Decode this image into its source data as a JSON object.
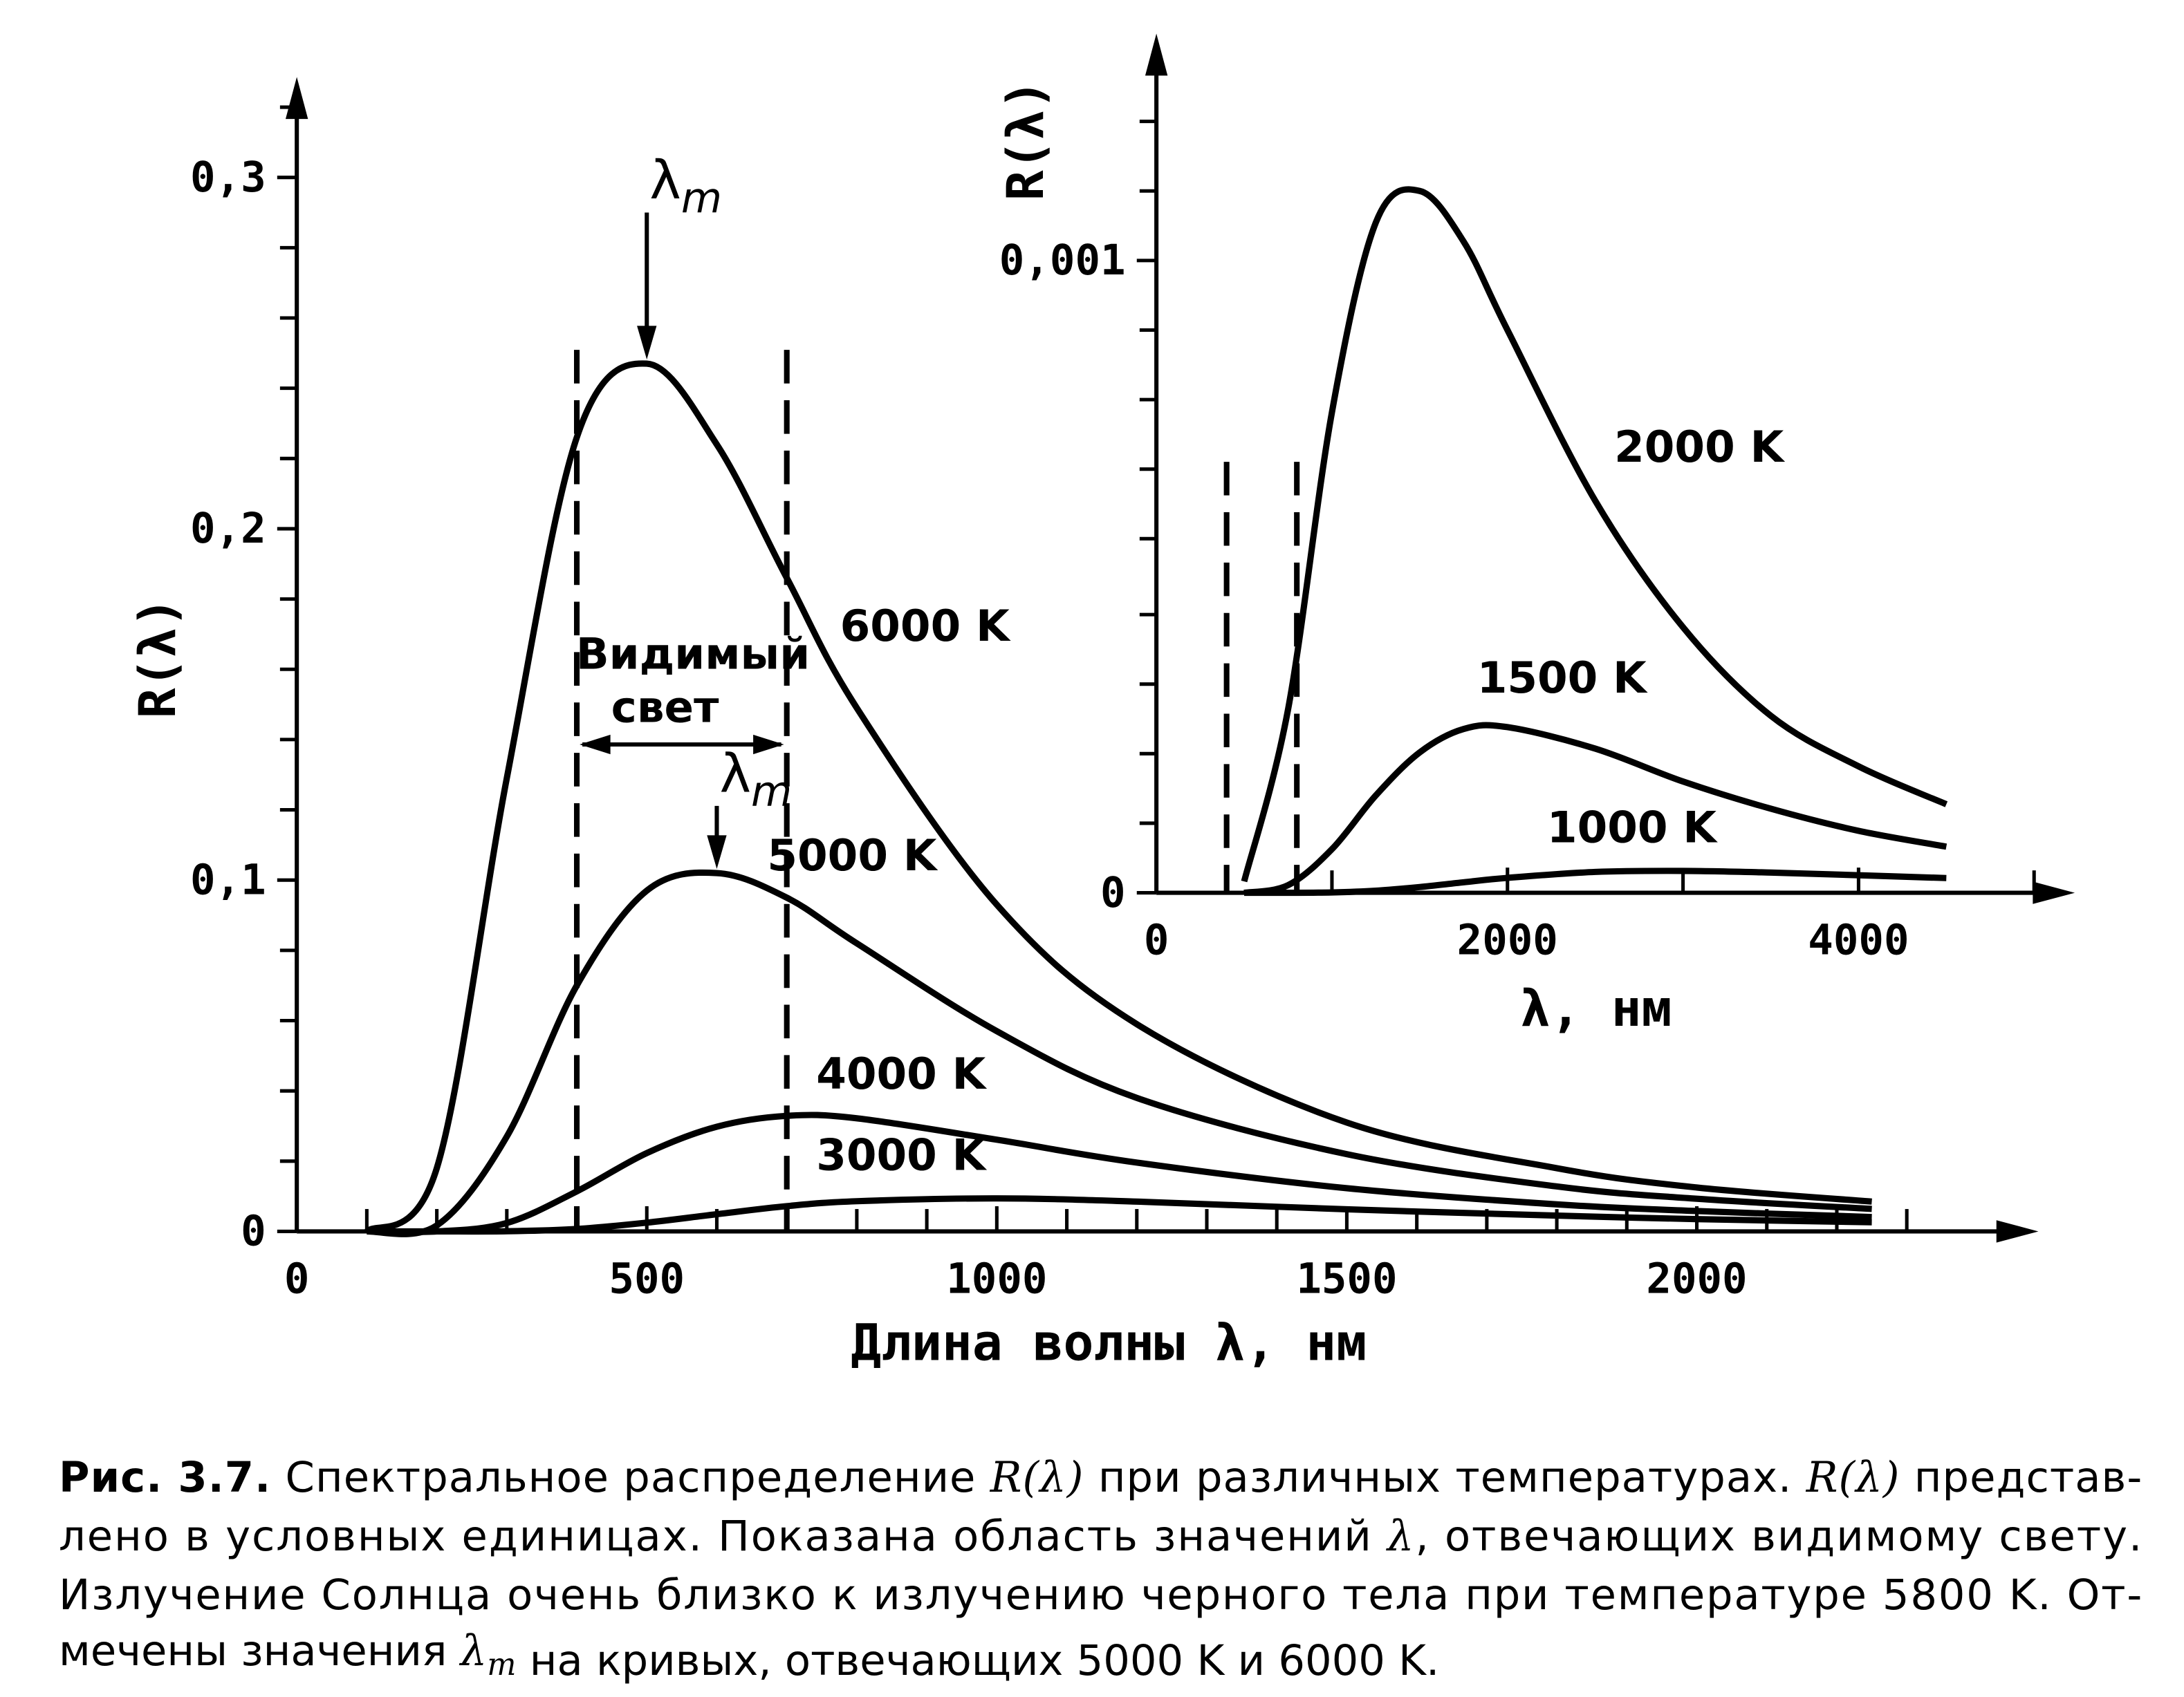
{
  "chart_data": [
    {
      "type": "line",
      "y_label": "R(λ)",
      "x_label": "Длина волны λ, нм",
      "x": [
        100,
        200,
        300,
        400,
        500,
        600,
        700,
        800,
        1000,
        1200,
        1500,
        1800,
        2000,
        2250
      ],
      "series": [
        {
          "name": "6000 K",
          "color": "#000000",
          "values": [
            0,
            0.018,
            0.129,
            0.226,
            0.247,
            0.224,
            0.186,
            0.149,
            0.093,
            0.059,
            0.031,
            0.018,
            0.0125,
            0.0085
          ]
        },
        {
          "name": "5000 K",
          "color": "#000000",
          "values": [
            0,
            0.0017,
            0.027,
            0.07,
            0.097,
            0.102,
            0.095,
            0.082,
            0.057,
            0.038,
            0.022,
            0.0128,
            0.0093,
            0.0064
          ]
        },
        {
          "name": "4000 K",
          "color": "#000000",
          "values": [
            0,
            0,
            0.0024,
            0.0114,
            0.0223,
            0.0298,
            0.0329,
            0.0322,
            0.0261,
            0.0196,
            0.0123,
            0.0077,
            0.0058,
            0.0041
          ]
        },
        {
          "name": "3000 K",
          "color": "#000000",
          "values": [
            0,
            0,
            5e-05,
            0.0007,
            0.0025,
            0.0049,
            0.0072,
            0.0086,
            0.0094,
            0.0085,
            0.0063,
            0.0045,
            0.0035,
            0.0026
          ]
        }
      ],
      "xlim": [
        0,
        2480
      ],
      "ylim": [
        0,
        0.327
      ],
      "xticks": [
        0,
        500,
        1000,
        1500,
        2000
      ],
      "xminorticks": [
        100,
        200,
        300,
        400,
        600,
        700,
        800,
        900,
        1100,
        1200,
        1300,
        1400,
        1600,
        1700,
        1800,
        1900,
        2100,
        2200,
        2300
      ],
      "yticks": [
        0,
        {
          "value": 0.1,
          "label": "0,1"
        },
        {
          "value": 0.2,
          "label": "0,2"
        },
        {
          "value": 0.3,
          "label": "0,3"
        }
      ],
      "yminorticks": [
        0.02,
        0.04,
        0.06,
        0.08,
        0.12,
        0.14,
        0.16,
        0.18,
        0.22,
        0.24,
        0.26,
        0.28,
        0.32
      ],
      "visible_range": [
        400,
        700
      ],
      "visible_label": [
        "Видимый",
        "свет"
      ],
      "annotations": [
        {
          "text": "λ",
          "sub": "m",
          "series": 0
        },
        {
          "text": "λ",
          "sub": "m",
          "series": 1
        }
      ],
      "grid": false
    },
    {
      "type": "line",
      "y_label": "R(λ)",
      "x_label": "λ, нм",
      "x": [
        500,
        750,
        1000,
        1250,
        1500,
        1750,
        2000,
        2500,
        3000,
        3500,
        4000,
        4500
      ],
      "series": [
        {
          "name": "2000 K",
          "color": "#000000",
          "values": [
            1.8e-05,
            0.00029,
            0.00076,
            0.00106,
            0.00111,
            0.00103,
            0.00089,
            0.00062,
            0.00042,
            0.00028,
            0.0002,
            0.00014
          ]
        },
        {
          "name": "1500 K",
          "color": "#000000",
          "values": [
            0,
            1.2e-05,
            6.9e-05,
            0.000154,
            0.000222,
            0.000259,
            0.000262,
            0.000228,
            0.000176,
            0.000133,
            9.8e-05,
            7.3e-05
          ]
        },
        {
          "name": "1000 K",
          "color": "#000000",
          "values": [
            0,
            0,
            6e-07,
            3.3e-06,
            9.1e-06,
            1.66e-05,
            2.36e-05,
            3.3e-05,
            3.46e-05,
            3.2e-05,
            2.77e-05,
            2.33e-05
          ]
        }
      ],
      "xlim": [
        0,
        5200
      ],
      "ylim": [
        0,
        0.00135
      ],
      "xticks": [
        0,
        2000,
        4000
      ],
      "xminorticks": [
        1000,
        3000,
        5000
      ],
      "yticks": [
        0,
        {
          "value": 0.001,
          "label": "0,001"
        }
      ],
      "yminorticks": [
        0.00011,
        0.00022,
        0.00033,
        0.00044,
        0.00056,
        0.00067,
        0.00078,
        0.00089,
        0.00111,
        0.00122
      ],
      "visible_range": [
        400,
        800
      ],
      "grid": false
    }
  ],
  "caption": {
    "lines": [
      [
        {
          "text": "Рис. 3.7.",
          "bold": true
        },
        {
          "text": " Спектральное распределение "
        },
        {
          "text": "R(λ)",
          "math": true
        },
        {
          "text": " при различных температурах. "
        },
        {
          "text": "R(λ)",
          "math": true
        },
        {
          "text": " представ-"
        }
      ],
      [
        {
          "text": "лено в условных единицах. Показана область значений "
        },
        {
          "text": "λ",
          "math": true
        },
        {
          "text": ", отвечающих видимому свету."
        }
      ],
      [
        {
          "text": "Излучение Солнца очень близко к излучению черного тела при температуре 5800 K. От-"
        }
      ],
      [
        {
          "text": "мечены значения "
        },
        {
          "text": "λ",
          "sub": "m",
          "math": true
        },
        {
          "text": " на кривых, отвечающих 5000 K и 6000 K."
        }
      ]
    ]
  }
}
